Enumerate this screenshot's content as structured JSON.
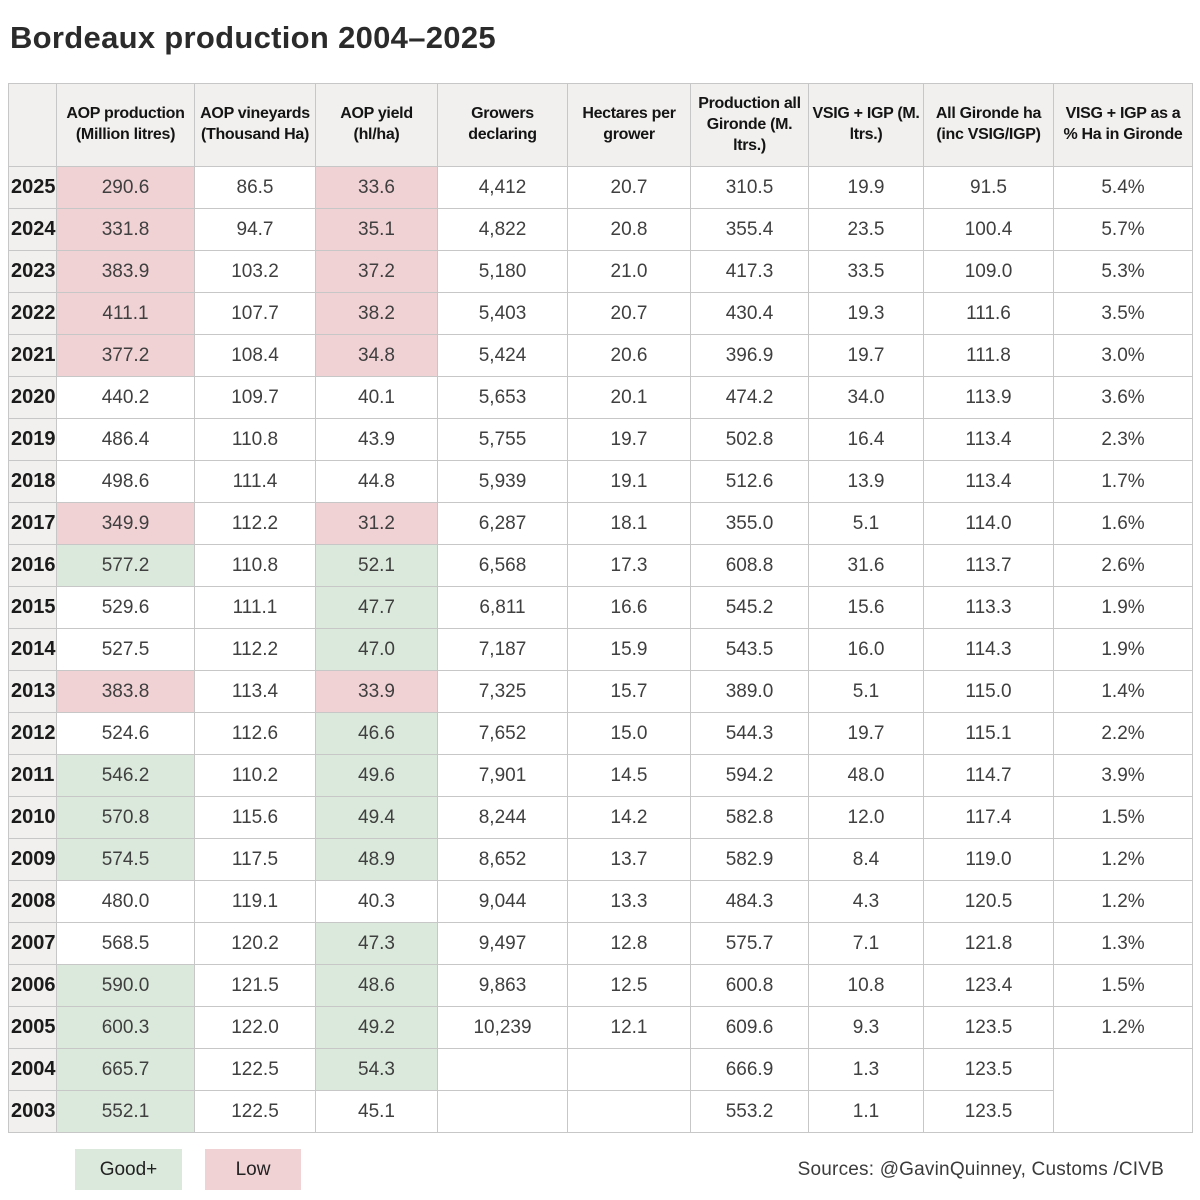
{
  "title": "Bordeaux production 2004–2025",
  "colors": {
    "good": "#dbe9dc",
    "low": "#f0d2d5",
    "header_bg": "#f1f0ee",
    "border": "#c7c7c7"
  },
  "legend": {
    "good_label": "Good+",
    "low_label": "Low"
  },
  "source": "Sources: @GavinQuinney, Customs /CIVB",
  "chart_data": {
    "type": "table",
    "title": "Bordeaux production 2004–2025",
    "columns": [
      "",
      "AOP production (Million litres)",
      "AOP vineyards (Thousand Ha)",
      "AOP yield (hl/ha)",
      "Growers declaring",
      "Hectares per grower",
      "Production all Gironde (M. ltrs.)",
      "VSIG + IGP (M. ltrs.)",
      "All Gironde ha (inc VSIG/IGP)",
      "VISG + IGP as a % Ha in Gironde"
    ],
    "rows": [
      {
        "year": "2025",
        "values": [
          "290.6",
          "86.5",
          "33.6",
          "4,412",
          "20.7",
          "310.5",
          "19.9",
          "91.5",
          "5.4%"
        ],
        "highlights": {
          "0": "low",
          "2": "low"
        }
      },
      {
        "year": "2024",
        "values": [
          "331.8",
          "94.7",
          "35.1",
          "4,822",
          "20.8",
          "355.4",
          "23.5",
          "100.4",
          "5.7%"
        ],
        "highlights": {
          "0": "low",
          "2": "low"
        }
      },
      {
        "year": "2023",
        "values": [
          "383.9",
          "103.2",
          "37.2",
          "5,180",
          "21.0",
          "417.3",
          "33.5",
          "109.0",
          "5.3%"
        ],
        "highlights": {
          "0": "low",
          "2": "low"
        }
      },
      {
        "year": "2022",
        "values": [
          "411.1",
          "107.7",
          "38.2",
          "5,403",
          "20.7",
          "430.4",
          "19.3",
          "111.6",
          "3.5%"
        ],
        "highlights": {
          "0": "low",
          "2": "low"
        }
      },
      {
        "year": "2021",
        "values": [
          "377.2",
          "108.4",
          "34.8",
          "5,424",
          "20.6",
          "396.9",
          "19.7",
          "111.8",
          "3.0%"
        ],
        "highlights": {
          "0": "low",
          "2": "low"
        }
      },
      {
        "year": "2020",
        "values": [
          "440.2",
          "109.7",
          "40.1",
          "5,653",
          "20.1",
          "474.2",
          "34.0",
          "113.9",
          "3.6%"
        ],
        "highlights": {}
      },
      {
        "year": "2019",
        "values": [
          "486.4",
          "110.8",
          "43.9",
          "5,755",
          "19.7",
          "502.8",
          "16.4",
          "113.4",
          "2.3%"
        ],
        "highlights": {}
      },
      {
        "year": "2018",
        "values": [
          "498.6",
          "111.4",
          "44.8",
          "5,939",
          "19.1",
          "512.6",
          "13.9",
          "113.4",
          "1.7%"
        ],
        "highlights": {}
      },
      {
        "year": "2017",
        "values": [
          "349.9",
          "112.2",
          "31.2",
          "6,287",
          "18.1",
          "355.0",
          "5.1",
          "114.0",
          "1.6%"
        ],
        "highlights": {
          "0": "low",
          "2": "low"
        }
      },
      {
        "year": "2016",
        "values": [
          "577.2",
          "110.8",
          "52.1",
          "6,568",
          "17.3",
          "608.8",
          "31.6",
          "113.7",
          "2.6%"
        ],
        "highlights": {
          "0": "good",
          "2": "good"
        }
      },
      {
        "year": "2015",
        "values": [
          "529.6",
          "111.1",
          "47.7",
          "6,811",
          "16.6",
          "545.2",
          "15.6",
          "113.3",
          "1.9%"
        ],
        "highlights": {
          "2": "good"
        }
      },
      {
        "year": "2014",
        "values": [
          "527.5",
          "112.2",
          "47.0",
          "7,187",
          "15.9",
          "543.5",
          "16.0",
          "114.3",
          "1.9%"
        ],
        "highlights": {
          "2": "good"
        }
      },
      {
        "year": "2013",
        "values": [
          "383.8",
          "113.4",
          "33.9",
          "7,325",
          "15.7",
          "389.0",
          "5.1",
          "115.0",
          "1.4%"
        ],
        "highlights": {
          "0": "low",
          "2": "low"
        }
      },
      {
        "year": "2012",
        "values": [
          "524.6",
          "112.6",
          "46.6",
          "7,652",
          "15.0",
          "544.3",
          "19.7",
          "115.1",
          "2.2%"
        ],
        "highlights": {
          "2": "good"
        }
      },
      {
        "year": "2011",
        "values": [
          "546.2",
          "110.2",
          "49.6",
          "7,901",
          "14.5",
          "594.2",
          "48.0",
          "114.7",
          "3.9%"
        ],
        "highlights": {
          "0": "good",
          "2": "good"
        }
      },
      {
        "year": "2010",
        "values": [
          "570.8",
          "115.6",
          "49.4",
          "8,244",
          "14.2",
          "582.8",
          "12.0",
          "117.4",
          "1.5%"
        ],
        "highlights": {
          "0": "good",
          "2": "good"
        }
      },
      {
        "year": "2009",
        "values": [
          "574.5",
          "117.5",
          "48.9",
          "8,652",
          "13.7",
          "582.9",
          "8.4",
          "119.0",
          "1.2%"
        ],
        "highlights": {
          "0": "good",
          "2": "good"
        }
      },
      {
        "year": "2008",
        "values": [
          "480.0",
          "119.1",
          "40.3",
          "9,044",
          "13.3",
          "484.3",
          "4.3",
          "120.5",
          "1.2%"
        ],
        "highlights": {}
      },
      {
        "year": "2007",
        "values": [
          "568.5",
          "120.2",
          "47.3",
          "9,497",
          "12.8",
          "575.7",
          "7.1",
          "121.8",
          "1.3%"
        ],
        "highlights": {
          "2": "good"
        }
      },
      {
        "year": "2006",
        "values": [
          "590.0",
          "121.5",
          "48.6",
          "9,863",
          "12.5",
          "600.8",
          "10.8",
          "123.4",
          "1.5%"
        ],
        "highlights": {
          "0": "good",
          "2": "good"
        }
      },
      {
        "year": "2005",
        "values": [
          "600.3",
          "122.0",
          "49.2",
          "10,239",
          "12.1",
          "609.6",
          "9.3",
          "123.5",
          "1.2%"
        ],
        "highlights": {
          "0": "good",
          "2": "good"
        }
      },
      {
        "year": "2004",
        "values": [
          "665.7",
          "122.5",
          "54.3",
          "",
          "",
          "666.9",
          "1.3",
          "123.5",
          ""
        ],
        "highlights": {
          "0": "good",
          "2": "good"
        },
        "merge_last": "start"
      },
      {
        "year": "2003",
        "values": [
          "552.1",
          "122.5",
          "45.1",
          "",
          "",
          "553.2",
          "1.1",
          "123.5",
          ""
        ],
        "highlights": {
          "0": "good"
        },
        "merge_last": "skip"
      }
    ],
    "legend": [
      {
        "label": "Good+",
        "color": "#dbe9dc"
      },
      {
        "label": "Low",
        "color": "#f0d2d5"
      }
    ],
    "source": "Sources: @GavinQuinney, Customs /CIVB"
  }
}
